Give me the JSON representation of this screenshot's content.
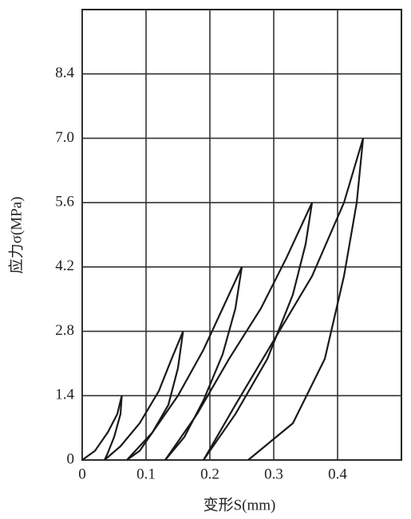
{
  "chart_data": {
    "type": "line",
    "x_label": "变形S(mm)",
    "y_label": "应力σ(MPa)",
    "xlim": [
      0,
      0.5
    ],
    "ylim": [
      0,
      9.8
    ],
    "xticks": [
      0,
      0.1,
      0.2,
      0.3,
      0.4
    ],
    "yticks": [
      0,
      1.4,
      2.8,
      4.2,
      5.6,
      {
        "value": 7,
        "label": "7.0"
      },
      8.4
    ],
    "grid": true,
    "series": [
      {
        "color": "#1a1a1a",
        "x": [
          0,
          0.02,
          0.04,
          0.055,
          0.062
        ],
        "values": [
          0,
          0.2,
          0.6,
          1.0,
          1.4
        ]
      },
      {
        "color": "#1a1a1a",
        "x": [
          0.062,
          0.06,
          0.05,
          0.04,
          0.035
        ],
        "values": [
          1.4,
          1.0,
          0.5,
          0.15,
          0
        ]
      },
      {
        "color": "#1a1a1a",
        "x": [
          0.035,
          0.06,
          0.09,
          0.12,
          0.14,
          0.158
        ],
        "values": [
          0,
          0.3,
          0.8,
          1.5,
          2.2,
          2.8
        ]
      },
      {
        "color": "#1a1a1a",
        "x": [
          0.158,
          0.15,
          0.135,
          0.11,
          0.09,
          0.07
        ],
        "values": [
          2.8,
          2.0,
          1.2,
          0.6,
          0.2,
          0
        ]
      },
      {
        "color": "#1a1a1a",
        "x": [
          0.07,
          0.11,
          0.15,
          0.19,
          0.22,
          0.25
        ],
        "values": [
          0,
          0.6,
          1.4,
          2.4,
          3.3,
          4.2
        ]
      },
      {
        "color": "#1a1a1a",
        "x": [
          0.25,
          0.24,
          0.22,
          0.19,
          0.16,
          0.13
        ],
        "values": [
          4.2,
          3.3,
          2.3,
          1.3,
          0.5,
          0
        ]
      },
      {
        "color": "#1a1a1a",
        "x": [
          0.13,
          0.18,
          0.23,
          0.28,
          0.32,
          0.36
        ],
        "values": [
          0,
          1.0,
          2.2,
          3.3,
          4.4,
          5.6
        ]
      },
      {
        "color": "#1a1a1a",
        "x": [
          0.36,
          0.35,
          0.33,
          0.29,
          0.24,
          0.19
        ],
        "values": [
          5.6,
          4.7,
          3.6,
          2.2,
          1.0,
          0
        ]
      },
      {
        "color": "#1a1a1a",
        "x": [
          0.19,
          0.24,
          0.3,
          0.36,
          0.41,
          0.44
        ],
        "values": [
          0,
          1.2,
          2.6,
          4.0,
          5.6,
          7.0
        ]
      },
      {
        "color": "#1a1a1a",
        "x": [
          0.44,
          0.43,
          0.41,
          0.38,
          0.33,
          0.26
        ],
        "values": [
          7.0,
          5.6,
          4.0,
          2.2,
          0.8,
          0
        ]
      }
    ]
  }
}
